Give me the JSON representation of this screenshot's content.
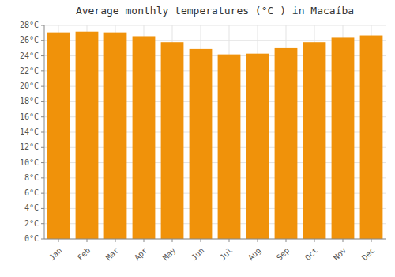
{
  "chart_data": {
    "type": "bar",
    "title": "Average monthly temperatures (°C ) in Macaíba",
    "categories": [
      "Jan",
      "Feb",
      "Mar",
      "Apr",
      "May",
      "Jun",
      "Jul",
      "Aug",
      "Sep",
      "Oct",
      "Nov",
      "Dec"
    ],
    "values": [
      27.0,
      27.2,
      27.0,
      26.5,
      25.8,
      24.9,
      24.2,
      24.3,
      25.0,
      25.8,
      26.4,
      26.7
    ],
    "color": "#F0920A",
    "ylim": [
      0,
      28
    ],
    "yticks": [
      {
        "value": 0,
        "label": "0°C"
      },
      {
        "value": 2,
        "label": "2°C"
      },
      {
        "value": 4,
        "label": "4°C"
      },
      {
        "value": 6,
        "label": "6°C"
      },
      {
        "value": 8,
        "label": "8°C"
      },
      {
        "value": 10,
        "label": "10°C"
      },
      {
        "value": 12,
        "label": "12°C"
      },
      {
        "value": 14,
        "label": "14°C"
      },
      {
        "value": 16,
        "label": "16°C"
      },
      {
        "value": 18,
        "label": "18°C"
      },
      {
        "value": 20,
        "label": "20°C"
      },
      {
        "value": 22,
        "label": "22°C"
      },
      {
        "value": 24,
        "label": "24°C"
      },
      {
        "value": 26,
        "label": "26°C"
      },
      {
        "value": 28,
        "label": "28°C"
      }
    ],
    "grid": true
  }
}
